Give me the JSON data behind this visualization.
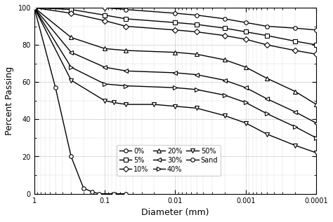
{
  "title": "",
  "xlabel": "Diameter (mm)",
  "ylabel": "Percent Passing",
  "ylim": [
    0,
    100
  ],
  "series": [
    {
      "key": "0%",
      "x": [
        1,
        0.3,
        0.1,
        0.05,
        0.01,
        0.005,
        0.002,
        0.001,
        0.0005,
        0.0002,
        0.0001
      ],
      "y": [
        100,
        100,
        100,
        99,
        97,
        96,
        94,
        92,
        90,
        89,
        88
      ],
      "marker": "o",
      "label": "0%"
    },
    {
      "key": "5%",
      "x": [
        1,
        0.3,
        0.1,
        0.05,
        0.01,
        0.005,
        0.002,
        0.001,
        0.0005,
        0.0002,
        0.0001
      ],
      "y": [
        100,
        99,
        96,
        94,
        92,
        91,
        89,
        87,
        85,
        82,
        80
      ],
      "marker": "s",
      "label": "5%"
    },
    {
      "key": "10%",
      "x": [
        1,
        0.3,
        0.1,
        0.05,
        0.01,
        0.005,
        0.002,
        0.001,
        0.0005,
        0.0002,
        0.0001
      ],
      "y": [
        100,
        97,
        93,
        90,
        88,
        87,
        85,
        83,
        80,
        77,
        75
      ],
      "marker": "D",
      "label": "10%"
    },
    {
      "key": "20%",
      "x": [
        1,
        0.3,
        0.1,
        0.05,
        0.01,
        0.005,
        0.002,
        0.001,
        0.0005,
        0.0002,
        0.0001
      ],
      "y": [
        100,
        84,
        78,
        77,
        76,
        75,
        72,
        68,
        62,
        55,
        48
      ],
      "marker": "^",
      "label": "20%"
    },
    {
      "key": "30%",
      "x": [
        1,
        0.3,
        0.1,
        0.05,
        0.01,
        0.005,
        0.002,
        0.001,
        0.0005,
        0.0002,
        0.0001
      ],
      "y": [
        100,
        76,
        68,
        66,
        65,
        64,
        61,
        57,
        51,
        44,
        38
      ],
      "marker": "<",
      "label": "30%"
    },
    {
      "key": "40%",
      "x": [
        1,
        0.3,
        0.1,
        0.05,
        0.01,
        0.005,
        0.002,
        0.001,
        0.0005,
        0.0002,
        0.0001
      ],
      "y": [
        100,
        68,
        59,
        58,
        57,
        56,
        53,
        49,
        43,
        36,
        30
      ],
      "marker": ">",
      "label": "40%"
    },
    {
      "key": "50%",
      "x": [
        1,
        0.3,
        0.1,
        0.074,
        0.05,
        0.02,
        0.01,
        0.005,
        0.002,
        0.001,
        0.0005,
        0.0002,
        0.0001
      ],
      "y": [
        100,
        61,
        50,
        49,
        48,
        48,
        47,
        46,
        42,
        38,
        32,
        26,
        22
      ],
      "marker": "v",
      "label": "50%"
    },
    {
      "key": "Sand",
      "x": [
        1,
        0.5,
        0.3,
        0.2,
        0.15,
        0.12,
        0.074,
        0.05
      ],
      "y": [
        100,
        57,
        20,
        3,
        1,
        0,
        0,
        0
      ],
      "marker": "o",
      "label": "Sand"
    }
  ],
  "color": "black",
  "linewidth": 1.0,
  "markersize": 4,
  "legend_fontsize": 7,
  "tick_labelsize": 7,
  "axis_labelsize": 9
}
